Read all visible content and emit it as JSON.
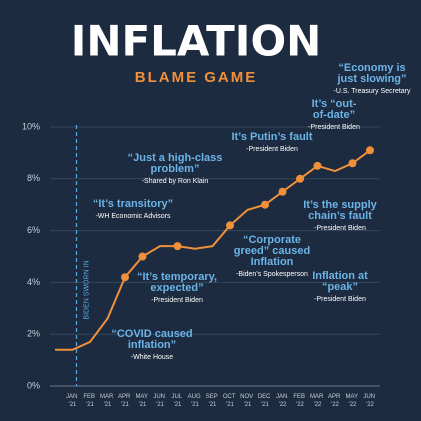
{
  "chart_data": {
    "type": "line",
    "title": "INFLATION",
    "subtitle": "BLAME GAME",
    "categories": [
      null,
      "JAN '21",
      "FEB '21",
      "MAR '21",
      "APR '21",
      "MAY '21",
      "JUN '21",
      "JUL '21",
      "AUG '21",
      "SEP '21",
      "OCT '21",
      "NOV '21",
      "DEC '21",
      "JAN '22",
      "FEB '22",
      "MAR '22",
      "APR '22",
      "MAY '22",
      "JUN '22"
    ],
    "values": [
      1.4,
      1.4,
      1.7,
      2.6,
      4.2,
      5.0,
      5.4,
      5.4,
      5.3,
      5.4,
      6.2,
      6.8,
      7.0,
      7.5,
      8.0,
      8.5,
      8.3,
      8.6,
      9.1
    ],
    "color": "#f0903a",
    "ylim": [
      0,
      10
    ],
    "yticks": [
      {
        "value": 0,
        "label": "0%"
      },
      {
        "value": 2,
        "label": "2%"
      },
      {
        "value": 4,
        "label": "4%"
      },
      {
        "value": 6,
        "label": "6%"
      },
      {
        "value": 8,
        "label": "8%"
      },
      {
        "value": 10,
        "label": "10%"
      }
    ],
    "grid": true,
    "event_label": "BIDEN SWORN IN",
    "annotations": [
      {
        "lines": [
          "“Economy is",
          "just slowing”"
        ],
        "attribution": "-U.S. Treasury Secretary"
      },
      {
        "lines": [
          "It’s “out-",
          "of-date”"
        ],
        "attribution": "-President Biden"
      },
      {
        "lines": [
          "It’s Putin’s fault"
        ],
        "attribution": "-President Biden"
      },
      {
        "lines": [
          "“Just a high-class",
          "problem”"
        ],
        "attribution": "-Shared by Ron Klain"
      },
      {
        "lines": [
          "“It’s transitory”"
        ],
        "attribution": "-WH Economic Advisors"
      },
      {
        "lines": [
          "“It’s temporary,",
          "expected”"
        ],
        "attribution": "-President Biden"
      },
      {
        "lines": [
          "“COVID caused",
          "inflation”"
        ],
        "attribution": "-White House"
      },
      {
        "lines": [
          "“Corporate",
          "greed” caused",
          "Inflation"
        ],
        "attribution": "-Biden’s Spokesperson"
      },
      {
        "lines": [
          "It’s the supply",
          "chain’s fault"
        ],
        "attribution": "-President Biden"
      },
      {
        "lines": [
          "Inflation at",
          "“peak”"
        ],
        "attribution": "-President Biden"
      }
    ]
  }
}
